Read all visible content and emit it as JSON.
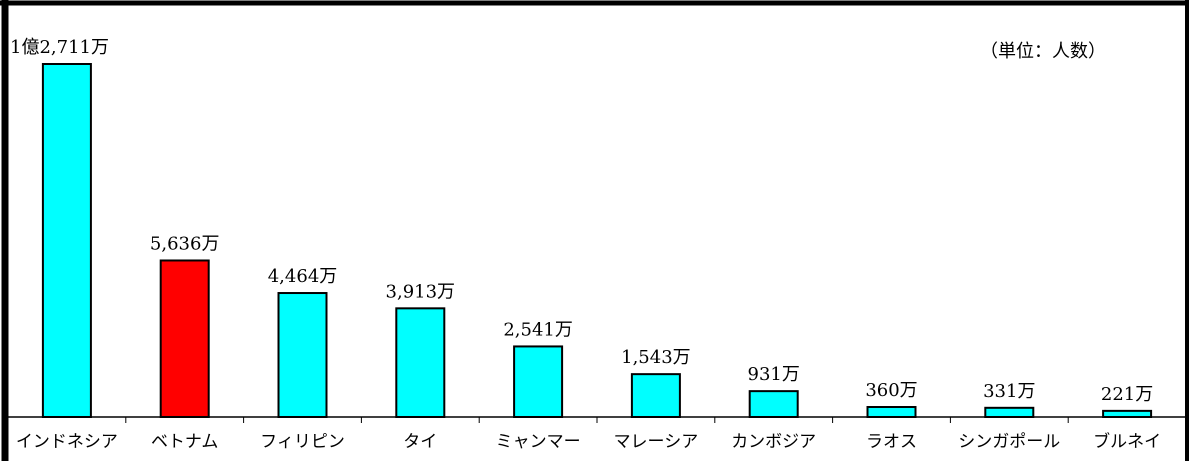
{
  "chart_data": {
    "type": "bar",
    "unit_note": "（単位：人数）",
    "categories": [
      "インドネシア",
      "ベトナム",
      "フィリピン",
      "タイ",
      "ミャンマー",
      "マレーシア",
      "カンボジア",
      "ラオス",
      "シンガポール",
      "ブルネイ"
    ],
    "values": [
      127110000,
      56360000,
      44640000,
      39130000,
      25410000,
      15430000,
      9310000,
      3600000,
      3310000,
      2210000
    ],
    "value_labels": [
      "1億2,711万",
      "5,636万",
      "4,464万",
      "3,913万",
      "2,541万",
      "1,543万",
      "931万",
      "360万",
      "331万",
      "221万"
    ],
    "ylim": [
      0,
      130000000
    ],
    "grid": false,
    "legend": "none",
    "colors": {
      "bar": "#00FFFF",
      "highlight": "#FF0000",
      "highlight_index": 1,
      "outline": "#000000"
    }
  }
}
